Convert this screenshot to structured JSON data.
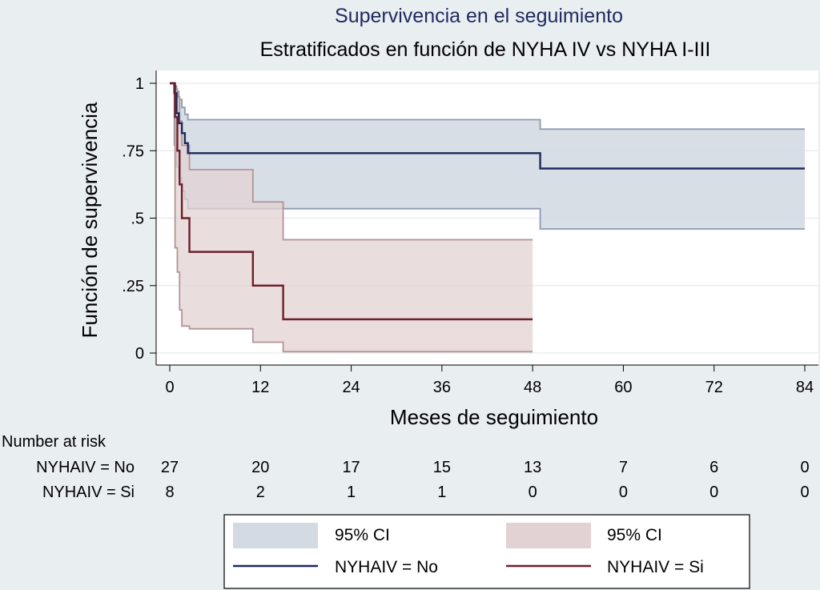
{
  "chart_data": {
    "type": "line",
    "title": "Supervivencia en el seguimiento",
    "subtitle": "Estratificados en función de NYHA IV vs NYHA I-III",
    "xlabel": "Meses de seguimiento",
    "ylabel": "Función de supervivencia",
    "xlim": [
      0,
      84
    ],
    "ylim": [
      0,
      1
    ],
    "x_ticks": [
      0,
      12,
      24,
      36,
      48,
      60,
      72,
      84
    ],
    "x_tick_labels": [
      "0",
      "12",
      "24",
      "36",
      "48",
      "60",
      "72",
      "84"
    ],
    "y_ticks": [
      0,
      0.25,
      0.5,
      0.75,
      1
    ],
    "y_tick_labels": [
      "0",
      ".25",
      ".5",
      ".75",
      "1"
    ],
    "grid": "horizontal",
    "series": [
      {
        "name": "NYHAIV = No",
        "color": "#1e2a5e",
        "ci_color": "#d3dae3",
        "ci_stroke": "#8c9bb0",
        "steps": [
          [
            0,
            1
          ],
          [
            0.6,
            0.963
          ],
          [
            0.9,
            0.889
          ],
          [
            1.2,
            0.852
          ],
          [
            1.6,
            0.815
          ],
          [
            2.0,
            0.778
          ],
          [
            2.4,
            0.741
          ],
          [
            49,
            0.684
          ],
          [
            84,
            0.684
          ]
        ],
        "ci_upper": [
          [
            0,
            1
          ],
          [
            0.6,
            0.99
          ],
          [
            0.9,
            0.97
          ],
          [
            1.2,
            0.94
          ],
          [
            1.6,
            0.91
          ],
          [
            2.0,
            0.885
          ],
          [
            2.4,
            0.865
          ],
          [
            49,
            0.83
          ],
          [
            84,
            0.83
          ]
        ],
        "ci_lower": [
          [
            0,
            1
          ],
          [
            0.6,
            0.77
          ],
          [
            0.9,
            0.69
          ],
          [
            1.2,
            0.65
          ],
          [
            1.6,
            0.6
          ],
          [
            2.0,
            0.57
          ],
          [
            2.4,
            0.535
          ],
          [
            49,
            0.46
          ],
          [
            84,
            0.46
          ]
        ]
      },
      {
        "name": "NYHAIV = Si",
        "color": "#6e1f2a",
        "ci_color": "#e3d2d3",
        "ci_stroke": "#b39495",
        "steps": [
          [
            0,
            1
          ],
          [
            0.7,
            0.875
          ],
          [
            1.0,
            0.75
          ],
          [
            1.3,
            0.625
          ],
          [
            1.6,
            0.5
          ],
          [
            2.6,
            0.375
          ],
          [
            11,
            0.25
          ],
          [
            15,
            0.125
          ],
          [
            48,
            0.125
          ]
        ],
        "ci_upper": [
          [
            0,
            1
          ],
          [
            0.7,
            0.98
          ],
          [
            1.0,
            0.95
          ],
          [
            1.3,
            0.86
          ],
          [
            1.6,
            0.77
          ],
          [
            2.6,
            0.68
          ],
          [
            11,
            0.56
          ],
          [
            15,
            0.42
          ],
          [
            48,
            0.42
          ]
        ],
        "ci_lower": [
          [
            0,
            1
          ],
          [
            0.7,
            0.39
          ],
          [
            1.0,
            0.3
          ],
          [
            1.3,
            0.16
          ],
          [
            1.6,
            0.1
          ],
          [
            2.6,
            0.09
          ],
          [
            11,
            0.04
          ],
          [
            15,
            0.005
          ],
          [
            48,
            0.005
          ]
        ]
      }
    ],
    "number_at_risk": {
      "title": "Number at risk",
      "times": [
        0,
        12,
        24,
        36,
        48,
        60,
        72,
        84
      ],
      "rows": [
        {
          "label": "NYHAIV = No",
          "values": [
            "27",
            "20",
            "17",
            "15",
            "13",
            "7",
            "6",
            "0"
          ]
        },
        {
          "label": "NYHAIV = Si",
          "values": [
            "8",
            "2",
            "1",
            "1",
            "0",
            "0",
            "0",
            "0"
          ]
        }
      ]
    },
    "legend": {
      "placement": "bottom",
      "items": [
        {
          "label": "95% CI",
          "kind": "area",
          "color": "#d3dae3",
          "series": 0
        },
        {
          "label": "95% CI",
          "kind": "area",
          "color": "#e3d2d3",
          "series": 1
        },
        {
          "label": "NYHAIV = No",
          "kind": "line",
          "color": "#1e2a5e",
          "series": 0
        },
        {
          "label": "NYHAIV = Si",
          "kind": "line",
          "color": "#6e1f2a",
          "series": 1
        }
      ]
    }
  }
}
